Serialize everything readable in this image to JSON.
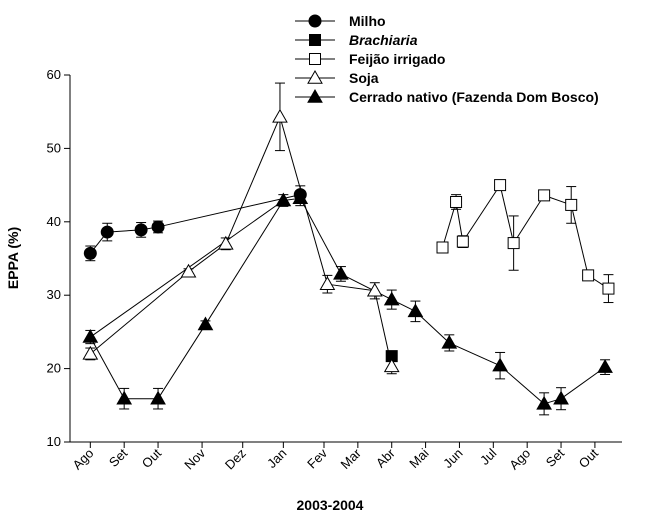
{
  "chart_data": {
    "type": "line",
    "xlabel": "2003-2004",
    "ylabel": "EPPA (%)",
    "ylim": [
      10,
      60
    ],
    "yticks": [
      10,
      20,
      30,
      40,
      50,
      60
    ],
    "month_ticks": [
      "Ago",
      "Set",
      "Out",
      "Nov",
      "Dez",
      "Jan",
      "Fev",
      "Mar",
      "Abr",
      "Mai",
      "Jun",
      "Jul",
      "Ago",
      "Set",
      "Out"
    ],
    "month_tick_positions": [
      0,
      1,
      2,
      3.3,
      4.5,
      5.7,
      6.9,
      7.9,
      8.9,
      9.9,
      10.9,
      11.9,
      12.9,
      13.9,
      14.9
    ],
    "legend_position": "top-right",
    "series": [
      {
        "name": "Milho",
        "marker": "circle",
        "fill": "#000000",
        "x": [
          0,
          0.5,
          1.5,
          2.0,
          6.2
        ],
        "y": [
          35.7,
          38.6,
          38.9,
          39.3,
          43.7
        ],
        "err": [
          1.0,
          1.2,
          1.0,
          0.8,
          1.2
        ]
      },
      {
        "name": "Brachiaria",
        "marker": "square",
        "fill": "#000000",
        "x": [
          8.9
        ],
        "y": [
          21.7
        ],
        "err": [
          0.5
        ]
      },
      {
        "name": "Feijão irrigado",
        "marker": "square",
        "fill": "#ffffff",
        "x": [
          10.4,
          10.8,
          11.0,
          12.1,
          12.5,
          13.4,
          14.2,
          14.7,
          15.3
        ],
        "y": [
          36.5,
          42.7,
          37.3,
          45.0,
          37.1,
          43.6,
          42.3,
          32.7,
          30.9
        ],
        "err": [
          0.5,
          1.0,
          0.8,
          0.5,
          3.7,
          0.6,
          2.5,
          0.6,
          1.9
        ]
      },
      {
        "name": "Soja",
        "marker": "triangle",
        "fill": "#ffffff",
        "x": [
          0,
          2.9,
          4.0,
          5.6,
          7.0,
          8.4,
          8.9
        ],
        "y": [
          22.0,
          33.2,
          37.0,
          54.3,
          31.5,
          30.6,
          20.3
        ],
        "err": [
          0.8,
          0.4,
          0.8,
          4.6,
          1.2,
          1.1,
          1.0
        ]
      },
      {
        "name": "Cerrado nativo (Fazenda Dom Bosco)",
        "marker": "triangle",
        "fill": "#000000",
        "x": [
          0,
          1.0,
          2.0,
          3.4,
          5.7,
          6.2,
          7.4,
          8.9,
          9.6,
          10.6,
          12.1,
          13.4,
          13.9,
          15.2
        ],
        "y": [
          24.3,
          15.9,
          15.9,
          26.0,
          42.9,
          43.2,
          32.9,
          29.4,
          27.8,
          23.5,
          20.4,
          15.2,
          15.9,
          20.2
        ],
        "err": [
          0.9,
          1.4,
          1.4,
          0.5,
          0.8,
          1.0,
          1.0,
          1.3,
          1.4,
          1.1,
          1.8,
          1.5,
          1.5,
          1.0
        ]
      }
    ],
    "connections": [
      {
        "series": 0,
        "from": 0,
        "to": 1
      },
      {
        "series": 0,
        "from": 1,
        "to": 2
      },
      {
        "series": 0,
        "from": 2,
        "to": 3
      },
      {
        "series": 0,
        "from": 3,
        "to": 4
      },
      {
        "series": 2,
        "from": 0,
        "to": 1
      },
      {
        "series": 2,
        "from": 1,
        "to": 2
      },
      {
        "series": 2,
        "from": 2,
        "to": 3
      },
      {
        "series": 2,
        "from": 3,
        "to": 4
      },
      {
        "series": 2,
        "from": 4,
        "to": 5
      },
      {
        "series": 2,
        "from": 5,
        "to": 6
      },
      {
        "series": 2,
        "from": 6,
        "to": 7
      },
      {
        "series": 2,
        "from": 7,
        "to": 8
      },
      {
        "series": 3,
        "from": 0,
        "to": 1
      },
      {
        "series": 3,
        "from": 1,
        "to": 2
      },
      {
        "series": 3,
        "from": 2,
        "to": 3
      },
      {
        "series": 3,
        "from": 3,
        "to": 4
      },
      {
        "series": 3,
        "from": 4,
        "to": 5
      },
      {
        "series": 3,
        "from": 5,
        "to": 6
      },
      {
        "series": 4,
        "from": 0,
        "to": 1
      },
      {
        "series": 4,
        "from": 1,
        "to": 2
      },
      {
        "series": 4,
        "from": 2,
        "to": 3
      },
      {
        "series": 4,
        "from": 3,
        "to": 4
      },
      {
        "series": 4,
        "from": 4,
        "to": 5
      },
      {
        "series": 4,
        "from": 5,
        "to": 6
      },
      {
        "series": 4,
        "from": 6,
        "to": 7
      },
      {
        "series": 4,
        "from": 7,
        "to": 8
      },
      {
        "series": 4,
        "from": 8,
        "to": 9
      },
      {
        "series": 4,
        "from": 9,
        "to": 10
      },
      {
        "series": 4,
        "from": 10,
        "to": 11
      },
      {
        "series": 4,
        "from": 11,
        "to": 12
      },
      {
        "series": 4,
        "from": 12,
        "to": 13
      },
      {
        "series": 4,
        "from": 0,
        "to": 4,
        "note": "cross-link"
      }
    ]
  }
}
